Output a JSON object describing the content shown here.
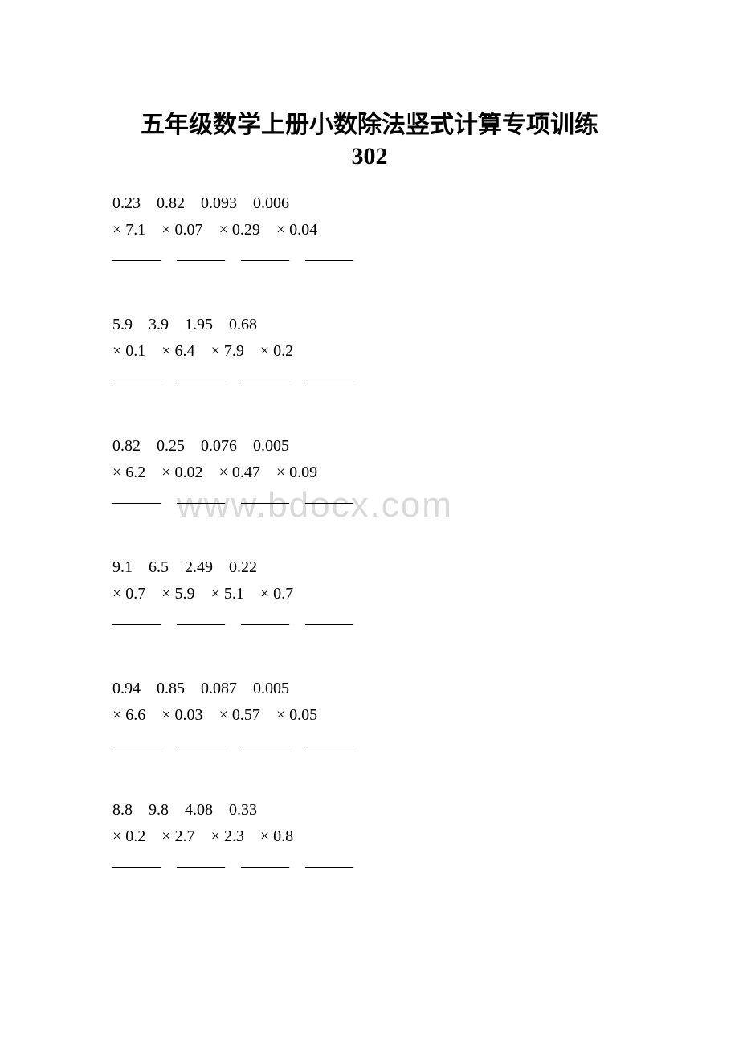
{
  "title": {
    "line1": "五年级数学上册小数除法竖式计算专项训练",
    "line2": "302"
  },
  "watermark": "www.bdocx.com",
  "colors": {
    "text": "#000000",
    "background": "#ffffff",
    "watermark": "#d9d9d9"
  },
  "typography": {
    "title_fontsize": 30,
    "body_fontsize": 20,
    "title_font": "SimHei",
    "body_font": "Times New Roman"
  },
  "rows": [
    {
      "tops": [
        "0.23",
        "0.82",
        "0.093",
        "0.006"
      ],
      "mults": [
        "× 7.1",
        "× 0.07",
        "× 0.29",
        "× 0.04"
      ],
      "underline": "———　———　———　———"
    },
    {
      "tops": [
        "5.9",
        "3.9",
        "1.95",
        "0.68"
      ],
      "mults": [
        "× 0.1",
        "× 6.4",
        "× 7.9",
        "× 0.2"
      ],
      "underline": "———　———　———　———"
    },
    {
      "tops": [
        "0.82",
        "0.25",
        "0.076",
        "0.005"
      ],
      "mults": [
        "× 6.2",
        "× 0.02",
        "× 0.47",
        "× 0.09"
      ],
      "underline": "———　———　———　———"
    },
    {
      "tops": [
        "9.1",
        "6.5",
        "2.49",
        "0.22"
      ],
      "mults": [
        "× 0.7",
        "× 5.9",
        "× 5.1",
        "× 0.7"
      ],
      "underline": "———　———　———　———"
    },
    {
      "tops": [
        "0.94",
        "0.85",
        "0.087",
        "0.005"
      ],
      "mults": [
        "× 6.6",
        "× 0.03",
        "× 0.57",
        "× 0.05"
      ],
      "underline": "———　———　———　———"
    },
    {
      "tops": [
        "8.8",
        "9.8",
        "4.08",
        "0.33"
      ],
      "mults": [
        "× 0.2",
        "× 2.7",
        "× 2.3",
        "× 0.8"
      ],
      "underline": "———　———　———　———"
    }
  ]
}
